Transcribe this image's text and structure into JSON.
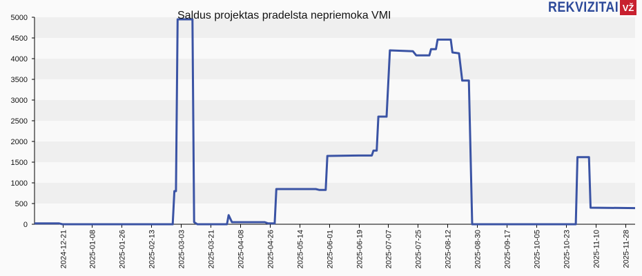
{
  "header": {
    "title": "Saldus projektas pradelsta nepriemoka VMI",
    "brand_text": "REKVIZITAI",
    "brand_badge": "VŽ"
  },
  "colors": {
    "line": "#3a53a4",
    "band_dark": "#efefef",
    "band_light": "#f9f9f9",
    "brand_blue": "#2d4a9a",
    "brand_red": "#c8202f"
  },
  "chart_data": {
    "type": "line",
    "title": "Saldus projektas pradelsta nepriemoka VMI",
    "xlabel": "",
    "ylabel": "",
    "ylim": [
      0,
      5000
    ],
    "yticks": [
      0,
      500,
      1000,
      1500,
      2000,
      2500,
      3000,
      3500,
      4000,
      4500,
      5000
    ],
    "xticks": [
      "2024-12-21",
      "2025-01-08",
      "2025-01-26",
      "2025-02-13",
      "2025-03-03",
      "2025-03-21",
      "2025-04-08",
      "2025-04-26",
      "2025-05-14",
      "2025-06-01",
      "2025-06-19",
      "2025-07-07",
      "2025-07-25",
      "2025-08-12",
      "2025-08-30",
      "2025-09-17",
      "2025-10-05",
      "2025-10-23",
      "2025-11-10",
      "2025-11-28"
    ],
    "grid": "horizontal alternating bands",
    "legend": "none",
    "series": [
      {
        "name": "Saldus projektas pradelsta nepriemoka VMI",
        "points": [
          [
            "2024-12-04",
            20
          ],
          [
            "2024-12-19",
            20
          ],
          [
            "2024-12-21",
            0
          ],
          [
            "2025-02-26",
            0
          ],
          [
            "2025-02-27",
            800
          ],
          [
            "2025-02-28",
            800
          ],
          [
            "2025-03-01",
            4950
          ],
          [
            "2025-03-10",
            4950
          ],
          [
            "2025-03-11",
            50
          ],
          [
            "2025-03-13",
            0
          ],
          [
            "2025-03-31",
            0
          ],
          [
            "2025-04-01",
            220
          ],
          [
            "2025-04-03",
            50
          ],
          [
            "2025-04-23",
            50
          ],
          [
            "2025-04-25",
            20
          ],
          [
            "2025-04-29",
            20
          ],
          [
            "2025-04-30",
            850
          ],
          [
            "2025-05-24",
            850
          ],
          [
            "2025-05-26",
            830
          ],
          [
            "2025-05-30",
            830
          ],
          [
            "2025-05-31",
            1650
          ],
          [
            "2025-06-19",
            1660
          ],
          [
            "2025-06-27",
            1660
          ],
          [
            "2025-06-28",
            1780
          ],
          [
            "2025-06-30",
            1780
          ],
          [
            "2025-07-01",
            2600
          ],
          [
            "2025-07-06",
            2600
          ],
          [
            "2025-07-08",
            4200
          ],
          [
            "2025-07-22",
            4180
          ],
          [
            "2025-07-24",
            4080
          ],
          [
            "2025-08-01",
            4080
          ],
          [
            "2025-08-02",
            4230
          ],
          [
            "2025-08-05",
            4230
          ],
          [
            "2025-08-06",
            4460
          ],
          [
            "2025-08-14",
            4460
          ],
          [
            "2025-08-15",
            4150
          ],
          [
            "2025-08-19",
            4130
          ],
          [
            "2025-08-21",
            3470
          ],
          [
            "2025-08-25",
            3470
          ],
          [
            "2025-08-27",
            0
          ],
          [
            "2025-10-29",
            0
          ],
          [
            "2025-10-30",
            1620
          ],
          [
            "2025-11-06",
            1620
          ],
          [
            "2025-11-07",
            400
          ],
          [
            "2025-12-05",
            390
          ]
        ]
      }
    ]
  }
}
